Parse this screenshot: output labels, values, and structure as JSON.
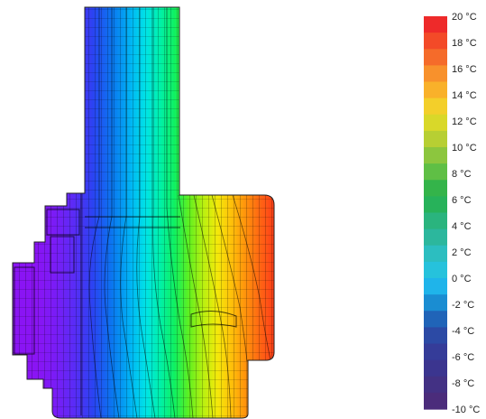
{
  "legend": {
    "labels": [
      "20 °C",
      "18 °C",
      "16 °C",
      "14 °C",
      "12 °C",
      "10 °C",
      "8 °C",
      "6 °C",
      "4 °C",
      "2 °C",
      "0 °C",
      "-2 °C",
      "-4 °C",
      "-6 °C",
      "-8 °C",
      "-10 °C"
    ],
    "swatch_colors": [
      "#ee2a2a",
      "#f34a28",
      "#f56b2a",
      "#f8912c",
      "#f9b12a",
      "#f3cf2a",
      "#d9d829",
      "#b7cf33",
      "#8cc63e",
      "#5fbf45",
      "#34b44a",
      "#27b25a",
      "#2ab47e",
      "#2cb79d",
      "#2cbec0",
      "#26c2dc",
      "#1fb4ea",
      "#1a8dd2",
      "#2064b8",
      "#2c4aa5",
      "#353c99",
      "#3b358f",
      "#433184",
      "#4b2c7b"
    ]
  },
  "colors": {
    "cold": "#8a12f2",
    "mid": "#00e0ff",
    "warm": "#ff3a1a"
  }
}
